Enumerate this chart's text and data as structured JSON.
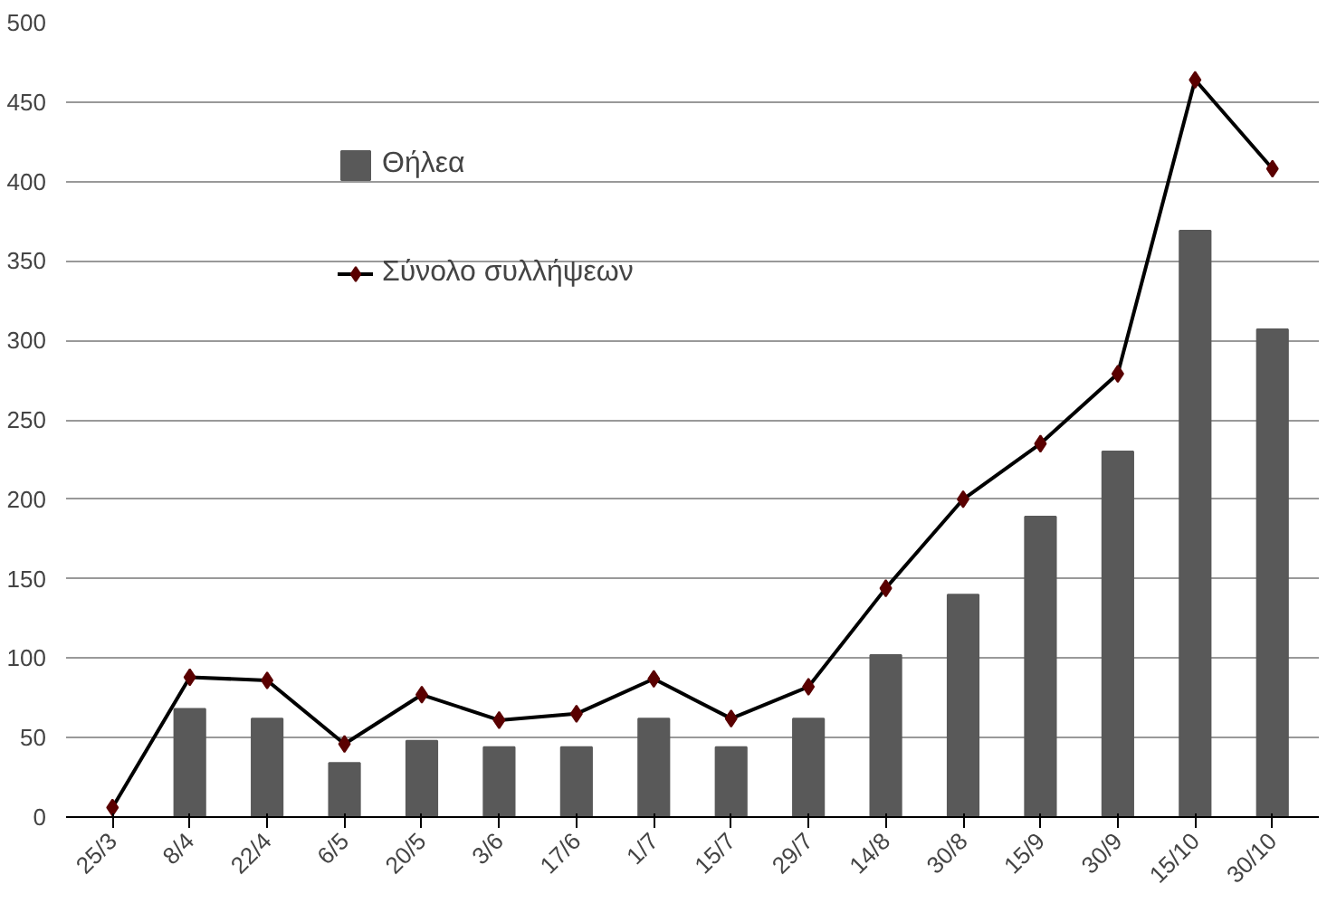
{
  "chart_data": {
    "type": "bar",
    "categories": [
      "25/3",
      "8/4",
      "22/4",
      "6/5",
      "20/5",
      "3/6",
      "17/6",
      "1/7",
      "15/7",
      "29/7",
      "14/8",
      "30/8",
      "15/9",
      "30/9",
      "15/10",
      "30/10"
    ],
    "series": [
      {
        "name": "Θήλεα",
        "color": "#595959",
        "values": [
          0,
          68,
          62,
          34,
          48,
          44,
          44,
          62,
          44,
          62,
          102,
          140,
          189,
          230,
          369,
          307
        ]
      },
      {
        "name": "Σύνολο συλλήψεων",
        "type": "line",
        "color": "#000000",
        "marker": "diamond",
        "values": [
          6,
          88,
          86,
          46,
          77,
          61,
          65,
          87,
          62,
          82,
          144,
          200,
          235,
          279,
          464,
          408
        ]
      }
    ],
    "ylim": [
      0,
      500
    ],
    "yticks": [
      0,
      50,
      100,
      150,
      200,
      250,
      300,
      350,
      400,
      450,
      500
    ],
    "grid": "y",
    "legend": "top"
  }
}
